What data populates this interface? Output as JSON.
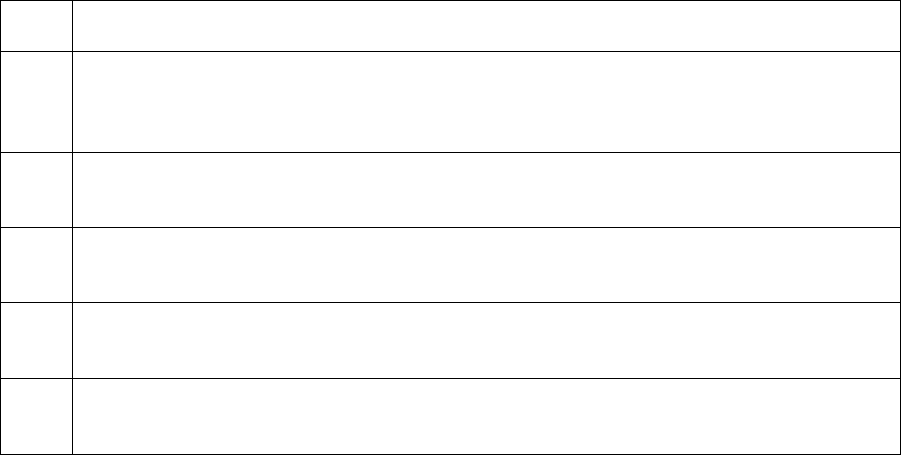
{
  "table": {
    "border_color": "#000000",
    "rows": [
      {
        "cells": [
          "",
          ""
        ]
      },
      {
        "cells": [
          "",
          ""
        ]
      },
      {
        "cells": [
          "",
          ""
        ]
      },
      {
        "cells": [
          "",
          ""
        ]
      },
      {
        "cells": [
          "",
          ""
        ]
      },
      {
        "cells": [
          "",
          ""
        ]
      }
    ]
  }
}
